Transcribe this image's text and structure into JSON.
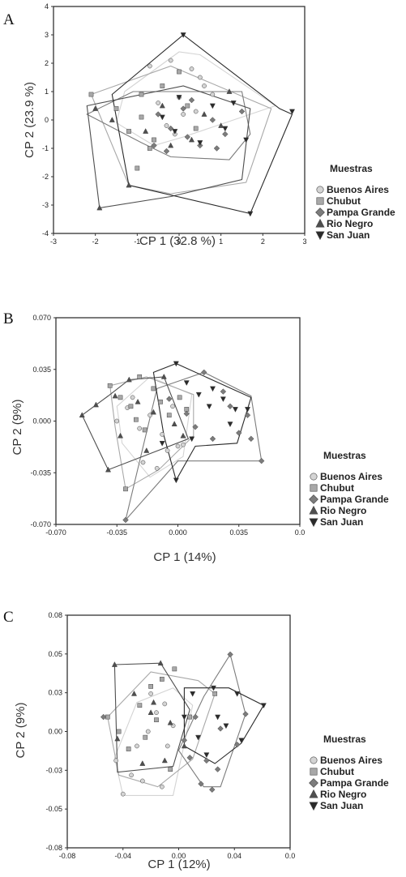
{
  "series_colors": {
    "Buenos Aires": "#d4d4d4",
    "Chubut": "#a8a8a8",
    "Pampa Grande": "#7c7c7c",
    "Rio Negro": "#4f4f4f",
    "San Juan": "#2a2a2a"
  },
  "series_markers": {
    "Buenos Aires": "circle",
    "Chubut": "square",
    "Pampa Grande": "diamond",
    "Rio Negro": "triangle-up",
    "San Juan": "triangle-down"
  },
  "chart_data": [
    {
      "type": "scatter",
      "panel_label": "A",
      "xlabel": "CP 1 (32.8 %)",
      "ylabel": "CP 2 (23.9 %)",
      "xlim": [
        -3,
        3
      ],
      "ylim": [
        -4,
        4
      ],
      "xticks": [
        "-3",
        "-2",
        "-1",
        "0",
        "1",
        "2",
        "3"
      ],
      "yticks": [
        "-4",
        "-3",
        "-2",
        "-1",
        "0",
        "1",
        "2",
        "3",
        "4"
      ],
      "legend_title": "Muestras",
      "legend_position": "right",
      "series": [
        {
          "name": "Buenos Aires",
          "x": [
            -0.7,
            -0.2,
            0.3,
            0.6,
            -0.5,
            0.0,
            0.4,
            0.8,
            -0.3,
            0.1,
            -0.1,
            0.5
          ],
          "y": [
            1.9,
            2.1,
            1.8,
            1.2,
            0.6,
            0.8,
            0.3,
            0.9,
            -0.2,
            0.2,
            -0.5,
            1.5
          ],
          "hull": [
            [
              -1.3,
              1.0
            ],
            [
              0.0,
              2.4
            ],
            [
              0.5,
              2.3
            ],
            [
              2.3,
              0.5
            ],
            [
              0.1,
              -0.6
            ],
            [
              -0.6,
              -0.9
            ],
            [
              -1.5,
              -0.1
            ]
          ]
        },
        {
          "name": "Chubut",
          "x": [
            -2.1,
            -1.5,
            -0.9,
            -1.2,
            -0.6,
            0.2,
            -0.9,
            -0.4,
            0.0,
            0.4,
            -1.0,
            -0.7
          ],
          "y": [
            0.9,
            0.4,
            0.1,
            -0.4,
            -0.7,
            0.5,
            0.9,
            1.2,
            1.7,
            -0.3,
            -1.7,
            -1.0
          ],
          "hull": [
            [
              -2.1,
              0.9
            ],
            [
              -0.2,
              1.9
            ],
            [
              2.2,
              0.4
            ],
            [
              1.6,
              -2.2
            ],
            [
              -0.2,
              -2.6
            ],
            [
              -1.2,
              -2.3
            ]
          ]
        },
        {
          "name": "Pampa Grande",
          "x": [
            -0.5,
            -0.2,
            0.2,
            0.5,
            -0.3,
            0.1,
            0.8,
            1.1,
            -0.6,
            1.5,
            0.3,
            0.9
          ],
          "y": [
            0.2,
            -0.3,
            -0.6,
            -0.9,
            -1.1,
            0.4,
            0.0,
            -0.5,
            -0.9,
            0.3,
            0.7,
            -1.0
          ],
          "hull": [
            [
              -2.2,
              0.2
            ],
            [
              -1.1,
              1.0
            ],
            [
              1.5,
              1.0
            ],
            [
              1.7,
              -0.5
            ],
            [
              1.2,
              -1.4
            ],
            [
              -0.2,
              -1.3
            ],
            [
              -0.9,
              -0.8
            ]
          ]
        },
        {
          "name": "Rio Negro",
          "x": [
            -1.9,
            -2.0,
            -1.2,
            -1.6,
            -0.4,
            0.3,
            1.0,
            1.2,
            -0.8,
            0.6,
            -0.2
          ],
          "y": [
            -3.1,
            0.4,
            -2.3,
            0.0,
            0.5,
            -0.7,
            -0.2,
            1.0,
            -0.4,
            0.2,
            -0.9
          ],
          "hull": [
            [
              -1.9,
              -3.1
            ],
            [
              -2.2,
              0.5
            ],
            [
              0.1,
              1.2
            ],
            [
              1.7,
              0.4
            ],
            [
              1.5,
              -2.1
            ],
            [
              -0.2,
              -2.7
            ]
          ]
        },
        {
          "name": "San Juan",
          "x": [
            0.1,
            1.7,
            2.7,
            0.0,
            0.5,
            -0.1,
            1.3,
            1.1,
            0.8,
            -0.4,
            1.6
          ],
          "y": [
            3.0,
            -3.3,
            0.3,
            0.8,
            -0.8,
            -0.4,
            0.6,
            -0.3,
            0.5,
            0.1,
            -0.7
          ],
          "hull": [
            [
              -1.6,
              0.9
            ],
            [
              0.1,
              3.0
            ],
            [
              2.4,
              0.4
            ],
            [
              2.7,
              0.2
            ],
            [
              1.7,
              -3.3
            ],
            [
              -1.2,
              -2.3
            ]
          ]
        }
      ]
    },
    {
      "type": "scatter",
      "panel_label": "B",
      "xlabel": "CP 1 (14%)",
      "ylabel": "CP 2 (9%)",
      "xlim": [
        -0.07,
        0.07
      ],
      "ylim": [
        -0.07,
        0.07
      ],
      "xticks": [
        "-0.070",
        "-0.035",
        "0.000",
        "0.035",
        "0.0"
      ],
      "yticks": [
        "0.070",
        "0.035",
        "0.000",
        "-0.035",
        "-0.070"
      ],
      "legend_title": "Muestras",
      "legend_position": "right",
      "series": [
        {
          "name": "Buenos Aires",
          "x": [
            -0.035,
            -0.029,
            -0.022,
            -0.016,
            -0.009,
            -0.003,
            0.003,
            -0.02,
            -0.012,
            -0.006,
            0.0,
            -0.026
          ],
          "y": [
            0.0,
            0.009,
            -0.005,
            0.004,
            -0.009,
            0.01,
            -0.016,
            -0.028,
            -0.032,
            -0.02,
            -0.017,
            0.016
          ],
          "hull": [
            [
              -0.035,
              0.01
            ],
            [
              -0.016,
              0.03
            ],
            [
              0.008,
              0.018
            ],
            [
              0.003,
              -0.024
            ],
            [
              -0.016,
              -0.038
            ],
            [
              -0.032,
              -0.015
            ]
          ]
        },
        {
          "name": "Chubut",
          "x": [
            -0.039,
            -0.033,
            -0.027,
            -0.024,
            -0.019,
            -0.014,
            -0.01,
            -0.005,
            0.001,
            0.005,
            -0.03,
            -0.022
          ],
          "y": [
            0.024,
            0.016,
            0.01,
            0.001,
            -0.006,
            0.022,
            0.013,
            0.004,
            0.016,
            0.008,
            -0.046,
            0.03
          ],
          "hull": [
            [
              -0.039,
              0.024
            ],
            [
              -0.018,
              0.03
            ],
            [
              0.009,
              0.018
            ],
            [
              0.009,
              -0.01
            ],
            [
              -0.011,
              -0.033
            ],
            [
              -0.03,
              -0.046
            ],
            [
              -0.036,
              -0.004
            ]
          ]
        },
        {
          "name": "Pampa Grande",
          "x": [
            -0.03,
            0.015,
            0.03,
            0.042,
            0.048,
            -0.005,
            0.005,
            0.01,
            0.02,
            0.035,
            0.04,
            0.026
          ],
          "y": [
            -0.067,
            0.033,
            0.01,
            -0.012,
            -0.027,
            0.015,
            0.005,
            -0.004,
            -0.012,
            -0.008,
            0.004,
            0.02
          ],
          "hull": [
            [
              -0.03,
              -0.067
            ],
            [
              -0.012,
              0.022
            ],
            [
              0.015,
              0.033
            ],
            [
              0.042,
              0.017
            ],
            [
              0.048,
              -0.027
            ],
            [
              0.0,
              -0.027
            ]
          ]
        },
        {
          "name": "Rio Negro",
          "x": [
            -0.055,
            -0.04,
            -0.028,
            -0.008,
            0.003,
            -0.047,
            -0.036,
            -0.023,
            -0.014,
            -0.002,
            -0.018,
            -0.033
          ],
          "y": [
            0.004,
            -0.033,
            0.028,
            0.03,
            -0.01,
            0.011,
            0.017,
            0.013,
            0.006,
            -0.002,
            -0.02,
            -0.01
          ],
          "hull": [
            [
              -0.055,
              0.004
            ],
            [
              -0.04,
              0.017
            ],
            [
              -0.028,
              0.028
            ],
            [
              -0.008,
              0.03
            ],
            [
              0.006,
              -0.012
            ],
            [
              -0.04,
              -0.033
            ]
          ]
        },
        {
          "name": "San Juan",
          "x": [
            -0.001,
            -0.001,
            0.02,
            0.033,
            0.04,
            0.005,
            0.012,
            0.018,
            0.026,
            0.03,
            -0.009,
            0.008
          ],
          "y": [
            0.039,
            -0.04,
            0.022,
            0.008,
            0.008,
            0.026,
            0.018,
            0.01,
            0.015,
            -0.002,
            -0.015,
            -0.012
          ],
          "hull": [
            [
              -0.014,
              0.033
            ],
            [
              -0.001,
              0.039
            ],
            [
              0.042,
              0.016
            ],
            [
              0.034,
              -0.015
            ],
            [
              0.01,
              -0.017
            ],
            [
              -0.001,
              -0.04
            ],
            [
              -0.008,
              -0.01
            ]
          ]
        }
      ]
    },
    {
      "type": "scatter",
      "panel_label": "C",
      "xlabel": "CP 1 (12%)",
      "ylabel": "CP 2 (9%)",
      "xlim": [
        -0.08,
        0.08
      ],
      "ylim": [
        -0.08,
        0.08
      ],
      "xticks": [
        "-0.08",
        "-0.04",
        "0.00",
        "0.04",
        "0.0"
      ],
      "yticks": [
        "0.08",
        "0.05",
        "0.03",
        "0.00",
        "-0.03",
        "-0.05",
        "-0.08"
      ],
      "legend_title": "Muestras",
      "legend_position": "right",
      "series": [
        {
          "name": "Buenos Aires",
          "x": [
            -0.045,
            -0.04,
            -0.03,
            -0.022,
            -0.016,
            -0.01,
            -0.004,
            -0.034,
            -0.026,
            -0.012,
            -0.02,
            -0.008
          ],
          "y": [
            -0.02,
            -0.043,
            -0.01,
            0.0,
            0.013,
            0.019,
            0.004,
            -0.03,
            -0.034,
            -0.038,
            0.026,
            -0.01
          ],
          "hull": [
            [
              -0.046,
              -0.018
            ],
            [
              -0.03,
              0.02
            ],
            [
              -0.004,
              0.03
            ],
            [
              0.01,
              0.018
            ],
            [
              -0.004,
              -0.044
            ],
            [
              -0.04,
              -0.044
            ]
          ]
        },
        {
          "name": "Chubut",
          "x": [
            -0.051,
            -0.043,
            -0.028,
            -0.02,
            -0.012,
            -0.003,
            0.008,
            0.026,
            -0.036,
            -0.024,
            -0.016,
            -0.006
          ],
          "y": [
            0.01,
            0.0,
            0.018,
            0.031,
            0.036,
            0.043,
            0.01,
            0.026,
            -0.012,
            -0.004,
            0.008,
            -0.026
          ],
          "hull": [
            [
              -0.051,
              0.01
            ],
            [
              -0.02,
              0.041
            ],
            [
              0.014,
              0.035
            ],
            [
              0.026,
              0.026
            ],
            [
              0.01,
              -0.019
            ],
            [
              -0.015,
              -0.038
            ],
            [
              -0.043,
              -0.03
            ]
          ]
        },
        {
          "name": "Pampa Grande",
          "x": [
            -0.054,
            0.02,
            0.028,
            0.037,
            0.048,
            0.004,
            0.012,
            0.03,
            0.042,
            0.016,
            0.008,
            0.024
          ],
          "y": [
            0.01,
            -0.02,
            -0.026,
            0.053,
            0.012,
            -0.006,
            0.01,
            0.002,
            -0.009,
            -0.036,
            -0.018,
            -0.04
          ],
          "hull": [
            [
              0.0,
              -0.013
            ],
            [
              0.018,
              0.024
            ],
            [
              0.037,
              0.053
            ],
            [
              0.048,
              0.012
            ],
            [
              0.03,
              -0.038
            ],
            [
              0.018,
              -0.038
            ]
          ]
        },
        {
          "name": "Rio Negro",
          "x": [
            -0.046,
            -0.044,
            -0.013,
            -0.032,
            -0.02,
            -0.006,
            0.004,
            -0.026,
            -0.01,
            -0.018
          ],
          "y": [
            0.046,
            -0.005,
            0.047,
            0.026,
            0.013,
            0.006,
            -0.01,
            -0.022,
            -0.02,
            0.02
          ],
          "hull": [
            [
              -0.046,
              0.046
            ],
            [
              -0.013,
              0.047
            ],
            [
              0.008,
              0.015
            ],
            [
              -0.004,
              -0.024
            ],
            [
              -0.044,
              -0.028
            ]
          ]
        },
        {
          "name": "San Juan",
          "x": [
            0.01,
            0.025,
            0.042,
            0.061,
            0.034,
            0.02,
            0.004,
            0.045,
            0.014,
            0.028
          ],
          "y": [
            0.026,
            0.03,
            0.026,
            0.018,
            0.004,
            -0.016,
            0.01,
            -0.006,
            -0.004,
            0.01
          ],
          "hull": [
            [
              0.004,
              0.03
            ],
            [
              0.036,
              0.03
            ],
            [
              0.061,
              0.018
            ],
            [
              0.045,
              -0.008
            ],
            [
              0.026,
              -0.022
            ],
            [
              0.004,
              -0.01
            ]
          ]
        }
      ]
    }
  ]
}
